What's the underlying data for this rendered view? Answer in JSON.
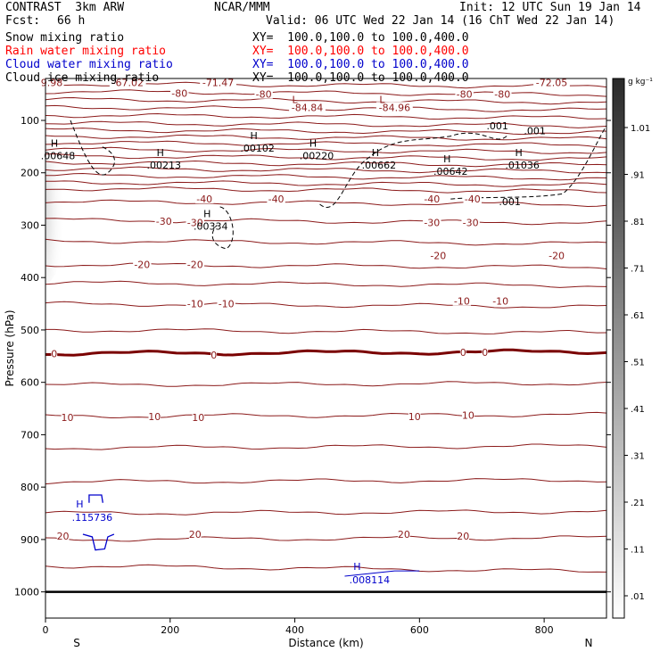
{
  "header": {
    "model": "CONTRAST  3km ARW",
    "center": "NCAR/MMM",
    "init": "Init: 12 UTC Sun 19 Jan 14",
    "fcst_label": "Fcst:",
    "fcst_value": "66 h",
    "valid": "Valid: 06 UTC Wed 22 Jan 14 (16 ChT Wed 22 Jan 14)"
  },
  "fields": [
    {
      "name": "Snow mixing ratio",
      "xy": "XY=  100.0,100.0 to 100.0,400.0",
      "color": "#000000"
    },
    {
      "name": "Rain water mixing ratio",
      "xy": "XY=  100.0,100.0 to 100.0,400.0",
      "color": "#ff0000"
    },
    {
      "name": "Cloud water mixing ratio",
      "xy": "XY=  100.0,100.0 to 100.0,400.0",
      "color": "#0000cc"
    },
    {
      "name": "Cloud ice mixing ratio",
      "xy": "XY=  100.0,100.0 to 100.0,400.0",
      "color": "#000000"
    }
  ],
  "chart_data": {
    "type": "contour",
    "xlabel": "Distance (km)",
    "ylabel": "Pressure (hPa)",
    "xlim": [
      0,
      900
    ],
    "ylim": [
      1050,
      20
    ],
    "x_ticks": [
      0,
      200,
      400,
      600,
      800
    ],
    "y_ticks": [
      100,
      200,
      300,
      400,
      500,
      600,
      700,
      800,
      900,
      1000
    ],
    "x_end_labels": {
      "left": "S",
      "right": "N"
    },
    "temperature_contours": {
      "color": "#8b1a1a",
      "levels_hpa_at_x0": [
        30,
        45,
        60,
        75,
        90,
        105,
        118,
        130,
        142,
        155,
        168,
        180,
        192,
        205,
        218,
        230,
        255,
        290,
        330,
        375,
        410,
        450,
        500,
        545,
        605,
        665,
        725,
        790,
        850,
        900,
        950
      ],
      "bold_level_hpa": 545,
      "labels": [
        {
          "text": "-67.02",
          "x": 132,
          "p": 28,
          "type": "value"
        },
        {
          "text": "-71.47",
          "x": 277,
          "p": 28,
          "type": "value"
        },
        {
          "text": "-72.05",
          "x": 812,
          "p": 28,
          "type": "value"
        },
        {
          "text": "-84.84",
          "x": 420,
          "p": 75,
          "type": "value"
        },
        {
          "text": "-84.96",
          "x": 560,
          "p": 75,
          "type": "value"
        },
        {
          "text": "9.98",
          "x": 10,
          "p": 28,
          "type": "value"
        },
        {
          "text": "-80",
          "x": 215,
          "p": 48,
          "type": "level"
        },
        {
          "text": "-80",
          "x": 350,
          "p": 50,
          "type": "level"
        },
        {
          "text": "-80",
          "x": 672,
          "p": 50,
          "type": "level"
        },
        {
          "text": "-80",
          "x": 733,
          "p": 50,
          "type": "level"
        },
        {
          "text": "-40",
          "x": 255,
          "p": 250,
          "type": "level"
        },
        {
          "text": "-40",
          "x": 370,
          "p": 250,
          "type": "level"
        },
        {
          "text": "-40",
          "x": 620,
          "p": 250,
          "type": "level"
        },
        {
          "text": "-40",
          "x": 685,
          "p": 250,
          "type": "level"
        },
        {
          "text": "-30",
          "x": 190,
          "p": 292,
          "type": "level"
        },
        {
          "text": "-30",
          "x": 240,
          "p": 295,
          "type": "level"
        },
        {
          "text": "-30",
          "x": 620,
          "p": 295,
          "type": "level"
        },
        {
          "text": "-30",
          "x": 682,
          "p": 295,
          "type": "level"
        },
        {
          "text": "-20",
          "x": 155,
          "p": 375,
          "type": "level"
        },
        {
          "text": "-20",
          "x": 240,
          "p": 375,
          "type": "level"
        },
        {
          "text": "-20",
          "x": 630,
          "p": 358,
          "type": "level"
        },
        {
          "text": "-20",
          "x": 820,
          "p": 358,
          "type": "level"
        },
        {
          "text": "-10",
          "x": 240,
          "p": 450,
          "type": "level"
        },
        {
          "text": "-10",
          "x": 290,
          "p": 450,
          "type": "level"
        },
        {
          "text": "-10",
          "x": 668,
          "p": 445,
          "type": "level"
        },
        {
          "text": "-10",
          "x": 730,
          "p": 445,
          "type": "level"
        },
        {
          "text": "0",
          "x": 14,
          "p": 545,
          "type": "level"
        },
        {
          "text": "0",
          "x": 270,
          "p": 548,
          "type": "level"
        },
        {
          "text": "0",
          "x": 670,
          "p": 543,
          "type": "level"
        },
        {
          "text": "0",
          "x": 705,
          "p": 543,
          "type": "level"
        },
        {
          "text": "10",
          "x": 35,
          "p": 667,
          "type": "level"
        },
        {
          "text": "10",
          "x": 175,
          "p": 665,
          "type": "level"
        },
        {
          "text": "10",
          "x": 245,
          "p": 667,
          "type": "level"
        },
        {
          "text": "10",
          "x": 592,
          "p": 665,
          "type": "level"
        },
        {
          "text": "10",
          "x": 678,
          "p": 663,
          "type": "level"
        },
        {
          "text": "20",
          "x": 28,
          "p": 893,
          "type": "level"
        },
        {
          "text": "20",
          "x": 240,
          "p": 890,
          "type": "level"
        },
        {
          "text": "20",
          "x": 575,
          "p": 890,
          "type": "level"
        },
        {
          "text": "20",
          "x": 670,
          "p": 893,
          "type": "level"
        }
      ]
    },
    "cloud_ice_markers": [
      {
        "text": ".00648",
        "x": 20,
        "p": 167
      },
      {
        "text": ".00213",
        "x": 190,
        "p": 185
      },
      {
        "text": ".00102",
        "x": 340,
        "p": 153
      },
      {
        "text": ".00220",
        "x": 435,
        "p": 167
      },
      {
        "text": ".00662",
        "x": 535,
        "p": 185
      },
      {
        "text": ".00642",
        "x": 650,
        "p": 197
      },
      {
        "text": ".01036",
        "x": 765,
        "p": 185
      },
      {
        "text": ".00334",
        "x": 265,
        "p": 302
      },
      {
        "text": ".001",
        "x": 725,
        "p": 110
      },
      {
        "text": ".001",
        "x": 785,
        "p": 120
      },
      {
        "text": ".001",
        "x": 745,
        "p": 255
      }
    ],
    "cloud_water_markers": [
      {
        "text": ".115736",
        "x": 75,
        "p": 858
      },
      {
        "text": ".008114",
        "x": 520,
        "p": 977
      }
    ],
    "low_markers": [
      {
        "text": "L",
        "x": 400,
        "p": 60
      },
      {
        "text": "L",
        "x": 540,
        "p": 60
      }
    ],
    "colorbar": {
      "unit": "g kg⁻¹",
      "ticks": [
        "1.01",
        ".91",
        ".81",
        ".71",
        ".61",
        ".51",
        ".41",
        ".31",
        ".21",
        ".11",
        ".01"
      ]
    }
  }
}
